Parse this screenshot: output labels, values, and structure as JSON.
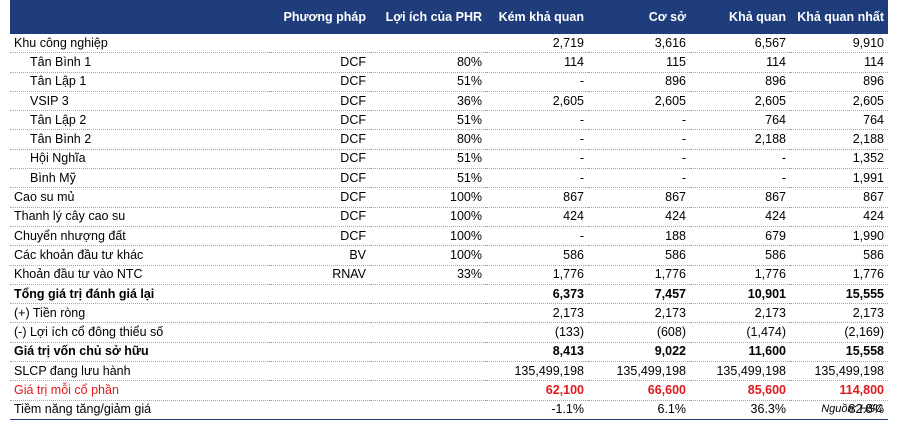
{
  "header": {
    "col0": "",
    "method": "Phương pháp",
    "benefit": "Lợi ích của PHR",
    "bear": "Kém khả quan",
    "base": "Cơ sở",
    "bull": "Khả quan",
    "best": "Khả quan nhất"
  },
  "rows": [
    {
      "label": "Khu công nghiệp",
      "method": "",
      "benefit": "",
      "bear": "2,719",
      "base": "3,616",
      "bull": "6,567",
      "best": "9,910"
    },
    {
      "label": "Tân Bình 1",
      "method": "DCF",
      "benefit": "80%",
      "bear": "114",
      "base": "115",
      "bull": "114",
      "best": "114"
    },
    {
      "label": "Tân Lập 1",
      "method": "DCF",
      "benefit": "51%",
      "bear": "-",
      "base": "896",
      "bull": "896",
      "best": "896"
    },
    {
      "label": "VSIP 3",
      "method": "DCF",
      "benefit": "36%",
      "bear": "2,605",
      "base": "2,605",
      "bull": "2,605",
      "best": "2,605"
    },
    {
      "label": "Tân Lập 2",
      "method": "DCF",
      "benefit": "51%",
      "bear": "-",
      "base": "-",
      "bull": "764",
      "best": "764"
    },
    {
      "label": "Tân Bình 2",
      "method": "DCF",
      "benefit": "80%",
      "bear": "-",
      "base": "-",
      "bull": "2,188",
      "best": "2,188"
    },
    {
      "label": "Hội Nghĩa",
      "method": "DCF",
      "benefit": "51%",
      "bear": "-",
      "base": "-",
      "bull": "-",
      "best": "1,352"
    },
    {
      "label": "Bình Mỹ",
      "method": "DCF",
      "benefit": "51%",
      "bear": "-",
      "base": "-",
      "bull": "-",
      "best": "1,991"
    },
    {
      "label": "Cao su mủ",
      "method": "DCF",
      "benefit": "100%",
      "bear": "867",
      "base": "867",
      "bull": "867",
      "best": "867"
    },
    {
      "label": "Thanh lý cây cao su",
      "method": "DCF",
      "benefit": "100%",
      "bear": "424",
      "base": "424",
      "bull": "424",
      "best": "424"
    },
    {
      "label": "Chuyển nhượng đất",
      "method": "DCF",
      "benefit": "100%",
      "bear": "-",
      "base": "188",
      "bull": "679",
      "best": "1,990"
    },
    {
      "label": "Các khoản đầu tư khác",
      "method": "BV",
      "benefit": "100%",
      "bear": "586",
      "base": "586",
      "bull": "586",
      "best": "586"
    },
    {
      "label": "Khoản đầu tư vào NTC",
      "method": "RNAV",
      "benefit": "33%",
      "bear": "1,776",
      "base": "1,776",
      "bull": "1,776",
      "best": "1,776"
    },
    {
      "label": "Tổng giá trị đánh giá lại",
      "method": "",
      "benefit": "",
      "bear": "6,373",
      "base": "7,457",
      "bull": "10,901",
      "best": "15,555"
    },
    {
      "label": "(+) Tiền ròng",
      "method": "",
      "benefit": "",
      "bear": "2,173",
      "base": "2,173",
      "bull": "2,173",
      "best": "2,173"
    },
    {
      "label": "(-) Lợi ích cổ đông thiểu số",
      "method": "",
      "benefit": "",
      "bear": "(133)",
      "base": "(608)",
      "bull": "(1,474)",
      "best": "(2,169)"
    },
    {
      "label": "Giá trị vốn chủ sở hữu",
      "method": "",
      "benefit": "",
      "bear": "8,413",
      "base": "9,022",
      "bull": "11,600",
      "best": "15,558"
    },
    {
      "label": "SLCP đang lưu hành",
      "method": "",
      "benefit": "",
      "bear": "135,499,198",
      "base": "135,499,198",
      "bull": "135,499,198",
      "best": "135,499,198"
    },
    {
      "label": "Giá trị mỗi cổ phần",
      "method": "",
      "benefit": "",
      "bear": "62,100",
      "base": "66,600",
      "bull": "85,600",
      "best": "114,800"
    },
    {
      "label": "Tiềm năng tăng/giảm giá",
      "method": "",
      "benefit": "",
      "bear": "-1.1%",
      "base": "6.1%",
      "bull": "36.3%",
      "best": "82.8%"
    }
  ],
  "source": "Nguồn: HSC",
  "colors": {
    "header_bg": "#1f3d7a",
    "highlight": "#e0191c"
  }
}
